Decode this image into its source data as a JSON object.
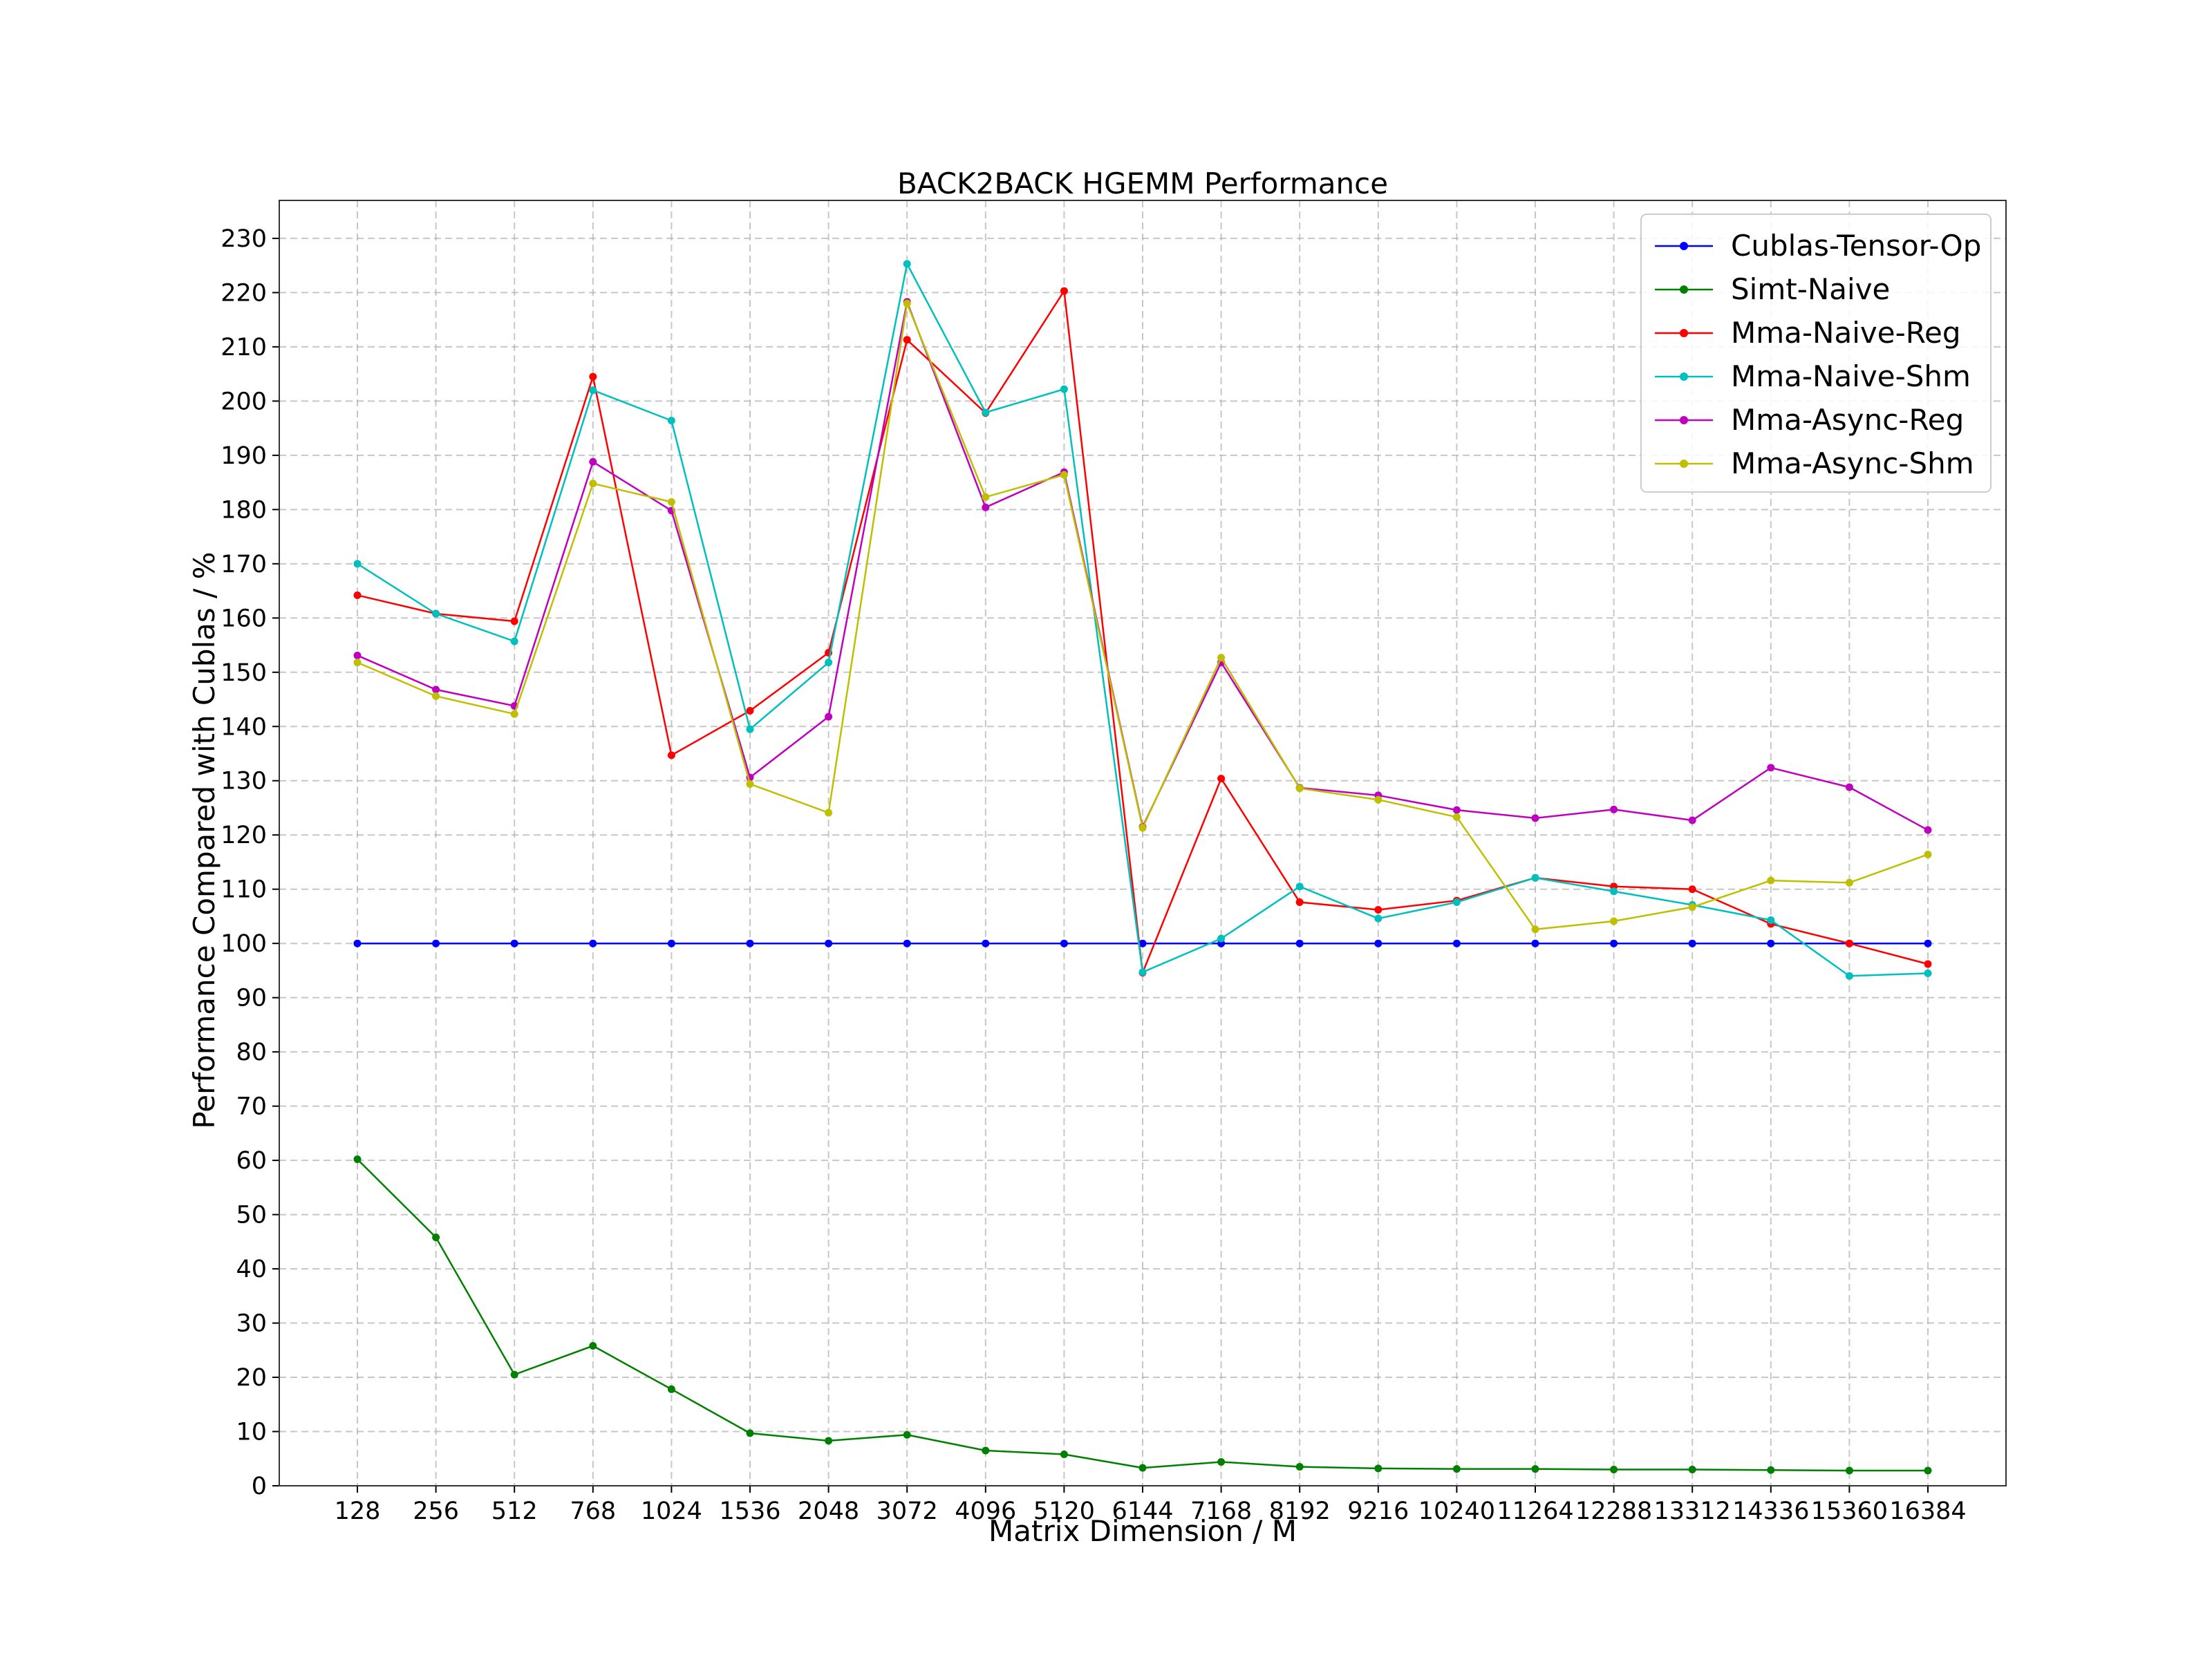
{
  "chart_data": {
    "type": "line",
    "title": "BACK2BACK HGEMM Performance",
    "xlabel": "Matrix Dimension / M",
    "ylabel": "Performance Compared with Cublas / %",
    "categories": [
      "128",
      "256",
      "512",
      "768",
      "1024",
      "1536",
      "2048",
      "3072",
      "4096",
      "5120",
      "6144",
      "7168",
      "8192",
      "9216",
      "10240",
      "11264",
      "12288",
      "13312",
      "14336",
      "15360",
      "16384"
    ],
    "ylim": [
      0,
      237
    ],
    "yticks": [
      0,
      10,
      20,
      30,
      40,
      50,
      60,
      70,
      80,
      90,
      100,
      110,
      120,
      130,
      140,
      150,
      160,
      170,
      180,
      190,
      200,
      210,
      220,
      230
    ],
    "grid": true,
    "legend_position": "top-right",
    "series": [
      {
        "name": "Cublas-Tensor-Op",
        "color": "#0000ff",
        "values": [
          100,
          100,
          100,
          100,
          100,
          100,
          100,
          100,
          100,
          100,
          100,
          100,
          100,
          100,
          100,
          100,
          100,
          100,
          100,
          100,
          100
        ]
      },
      {
        "name": "Simt-Naive",
        "color": "#008000",
        "values": [
          60.2,
          45.8,
          20.5,
          25.8,
          17.8,
          9.7,
          8.3,
          9.4,
          6.5,
          5.8,
          3.3,
          4.4,
          3.5,
          3.2,
          3.1,
          3.1,
          3.0,
          3.0,
          2.9,
          2.8,
          2.8
        ]
      },
      {
        "name": "Mma-Naive-Reg",
        "color": "#ff0000",
        "values": [
          164.2,
          160.8,
          159.4,
          204.5,
          134.7,
          142.9,
          153.6,
          211.3,
          197.8,
          220.3,
          94.6,
          130.4,
          107.6,
          106.2,
          107.9,
          112.1,
          110.5,
          110.0,
          103.6,
          100.0,
          96.2
        ]
      },
      {
        "name": "Mma-Naive-Shm",
        "color": "#00bfbf",
        "values": [
          170.0,
          160.8,
          155.7,
          202.0,
          196.4,
          139.5,
          151.8,
          225.3,
          197.9,
          202.2,
          94.7,
          100.9,
          110.5,
          104.6,
          107.6,
          112.1,
          109.6,
          107.1,
          104.3,
          94.0,
          94.5
        ]
      },
      {
        "name": "Mma-Async-Reg",
        "color": "#bf00bf",
        "values": [
          153.1,
          146.8,
          143.8,
          188.8,
          179.8,
          130.6,
          141.8,
          218.3,
          180.4,
          186.9,
          121.5,
          151.8,
          128.7,
          127.3,
          124.6,
          123.1,
          124.7,
          122.7,
          132.4,
          128.8,
          120.9
        ]
      },
      {
        "name": "Mma-Async-Shm",
        "color": "#bfbf00",
        "values": [
          151.8,
          145.6,
          142.3,
          184.8,
          181.4,
          129.4,
          124.1,
          218.0,
          182.3,
          186.4,
          121.3,
          152.7,
          128.6,
          126.5,
          123.3,
          102.6,
          104.1,
          106.7,
          111.6,
          111.2,
          116.4
        ]
      }
    ]
  }
}
